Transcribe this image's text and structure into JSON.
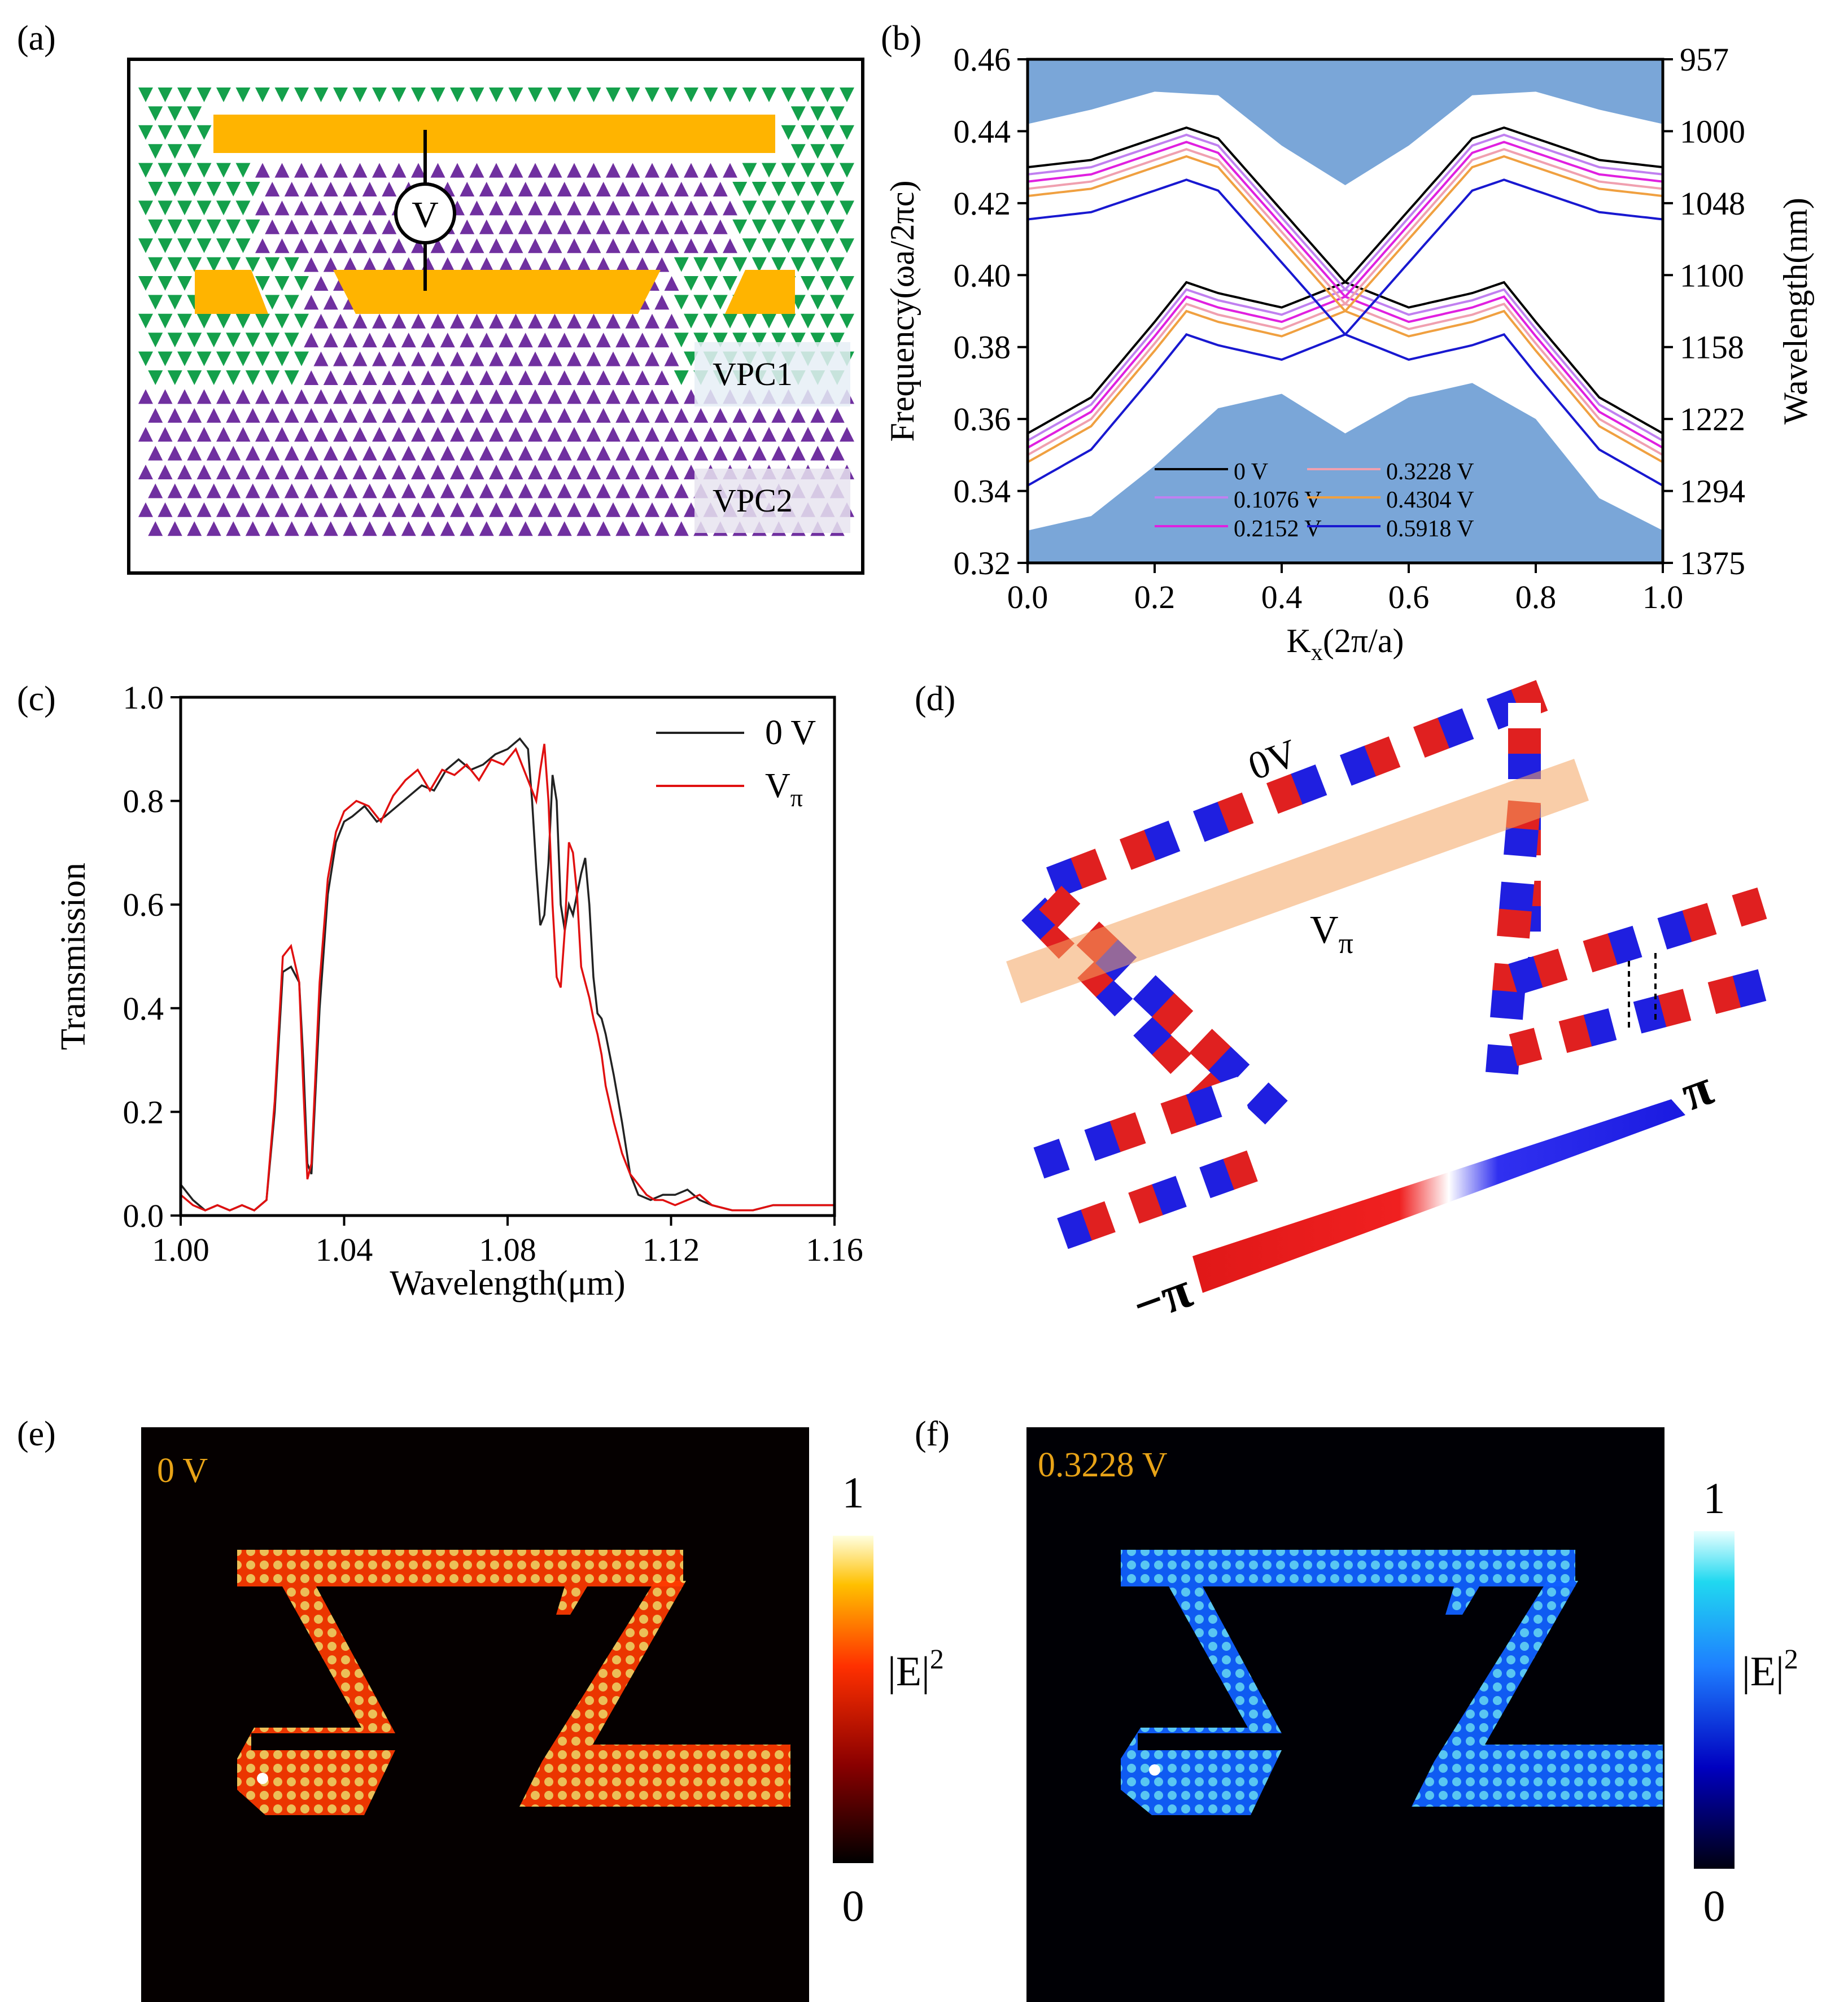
{
  "panels": {
    "a": {
      "label": "(a)",
      "voltage_symbol": "V",
      "region_labels": [
        "VPC1",
        "VPC2"
      ],
      "colors": {
        "gold": "#ffb400",
        "green": "#14a04b",
        "purple": "#7030a0"
      }
    },
    "b": {
      "label": "(b)"
    },
    "c": {
      "label": "(c)"
    },
    "d": {
      "label": "(d)",
      "label_0v": "0V",
      "label_vpi_main": "V",
      "label_vpi_sub": "π",
      "scale_min": "−π",
      "scale_max": "π",
      "colors": {
        "red": "#e02020",
        "blue": "#1f1fe0",
        "band": "#f4a460"
      }
    },
    "e": {
      "label": "(e)",
      "tag": "0 V",
      "colorbar_max": "1",
      "colorbar_min": "0",
      "colorbar_label": "|E|",
      "colorbar_exp": "2",
      "colors": {
        "tag": "#e8a317",
        "hot": "#ff4500"
      }
    },
    "f": {
      "label": "(f)",
      "tag": "0.3228 V",
      "colorbar_max": "1",
      "colorbar_min": "0",
      "colorbar_label": "|E|",
      "colorbar_exp": "2",
      "colors": {
        "tag": "#e8a317",
        "cool": "#1e90ff"
      }
    }
  },
  "chart_data": [
    {
      "panel": "b",
      "type": "line",
      "xlabel": "K",
      "xlabel_sub": "x",
      "xlabel_unit": "(2π/a)",
      "ylabel": "Frequency(ωa/2πc)",
      "ylabel_right": "Wavelength(nm)",
      "xlim": [
        0.0,
        1.0
      ],
      "ylim": [
        0.32,
        0.46
      ],
      "x_ticks": [
        "0.0",
        "0.2",
        "0.4",
        "0.6",
        "0.8",
        "1.0"
      ],
      "y_ticks": [
        "0.32",
        "0.34",
        "0.36",
        "0.38",
        "0.40",
        "0.42",
        "0.44",
        "0.46"
      ],
      "right_ticks": [
        {
          "f": 0.46,
          "label": "957"
        },
        {
          "f": 0.44,
          "label": "1000"
        },
        {
          "f": 0.42,
          "label": "1048"
        },
        {
          "f": 0.4,
          "label": "1100"
        },
        {
          "f": 0.38,
          "label": "1158"
        },
        {
          "f": 0.36,
          "label": "1222"
        },
        {
          "f": 0.34,
          "label": "1294"
        },
        {
          "f": 0.32,
          "label": "1375"
        }
      ],
      "bulk_color": "#7aa6d8",
      "upper_bulk_edge": {
        "x": [
          0.0,
          0.1,
          0.2,
          0.3,
          0.4,
          0.5,
          0.6,
          0.7,
          0.8,
          0.9,
          1.0
        ],
        "y": [
          0.442,
          0.446,
          0.451,
          0.45,
          0.436,
          0.425,
          0.436,
          0.45,
          0.451,
          0.446,
          0.442
        ]
      },
      "lower_bulk_edge": {
        "x": [
          0.0,
          0.1,
          0.2,
          0.3,
          0.4,
          0.5,
          0.6,
          0.7,
          0.8,
          0.9,
          1.0
        ],
        "y": [
          0.329,
          0.333,
          0.347,
          0.363,
          0.367,
          0.356,
          0.366,
          0.37,
          0.36,
          0.338,
          0.329
        ]
      },
      "series": [
        {
          "name": "0 V",
          "color": "#000000",
          "offset": 0.0
        },
        {
          "name": "0.1076 V",
          "color": "#c080f0",
          "offset": -0.002
        },
        {
          "name": "0.2152 V",
          "color": "#e020e0",
          "offset": -0.004
        },
        {
          "name": "0.3228 V",
          "color": "#f0a0b0",
          "offset": -0.006
        },
        {
          "name": "0.4304 V",
          "color": "#f0a040",
          "offset": -0.008
        },
        {
          "name": "0.5918 V",
          "color": "#1818d0",
          "offset": -0.0145
        }
      ],
      "band_a": {
        "x": [
          0.0,
          0.1,
          0.2,
          0.25,
          0.3,
          0.4,
          0.5,
          0.6,
          0.7,
          0.75,
          0.8,
          0.9,
          1.0
        ],
        "y": [
          0.43,
          0.432,
          0.438,
          0.441,
          0.438,
          0.418,
          0.398,
          0.391,
          0.395,
          0.398,
          0.387,
          0.366,
          0.356
        ]
      },
      "band_b": {
        "x": [
          0.0,
          0.1,
          0.2,
          0.25,
          0.3,
          0.4,
          0.5,
          0.6,
          0.7,
          0.75,
          0.8,
          0.9,
          1.0
        ],
        "y": [
          0.356,
          0.366,
          0.387,
          0.398,
          0.395,
          0.391,
          0.398,
          0.418,
          0.438,
          0.441,
          0.438,
          0.432,
          0.43
        ]
      }
    },
    {
      "panel": "c",
      "type": "line",
      "xlabel": "Wavelength(μm)",
      "ylabel": "Transmission",
      "xlim": [
        1.0,
        1.16
      ],
      "ylim": [
        0.0,
        1.0
      ],
      "x_ticks": [
        "1.00",
        "1.04",
        "1.08",
        "1.12",
        "1.16"
      ],
      "y_ticks": [
        "0.0",
        "0.2",
        "0.4",
        "0.6",
        "0.8",
        "1.0"
      ],
      "legend": [
        {
          "name": "0 V"
        },
        {
          "name": "V",
          "sub": "π"
        }
      ],
      "series": [
        {
          "name": "0 V",
          "color": "#222222",
          "x": [
            1.0,
            1.003,
            1.006,
            1.009,
            1.012,
            1.015,
            1.018,
            1.021,
            1.023,
            1.025,
            1.027,
            1.029,
            1.03,
            1.031,
            1.032,
            1.034,
            1.036,
            1.038,
            1.04,
            1.042,
            1.045,
            1.048,
            1.05,
            1.053,
            1.056,
            1.059,
            1.062,
            1.065,
            1.068,
            1.071,
            1.074,
            1.077,
            1.08,
            1.083,
            1.085,
            1.086,
            1.087,
            1.088,
            1.089,
            1.09,
            1.091,
            1.092,
            1.093,
            1.094,
            1.095,
            1.096,
            1.097,
            1.098,
            1.099,
            1.1,
            1.101,
            1.102,
            1.103,
            1.104,
            1.106,
            1.108,
            1.11,
            1.112,
            1.115,
            1.118,
            1.121,
            1.124,
            1.127,
            1.13,
            1.135,
            1.14,
            1.145,
            1.15,
            1.155,
            1.16
          ],
          "y": [
            0.06,
            0.03,
            0.01,
            0.02,
            0.01,
            0.02,
            0.01,
            0.03,
            0.2,
            0.47,
            0.48,
            0.45,
            0.3,
            0.1,
            0.08,
            0.4,
            0.62,
            0.72,
            0.76,
            0.77,
            0.79,
            0.76,
            0.77,
            0.79,
            0.81,
            0.83,
            0.82,
            0.86,
            0.88,
            0.86,
            0.87,
            0.89,
            0.9,
            0.92,
            0.9,
            0.8,
            0.67,
            0.56,
            0.58,
            0.68,
            0.85,
            0.8,
            0.6,
            0.55,
            0.6,
            0.58,
            0.62,
            0.66,
            0.69,
            0.6,
            0.46,
            0.39,
            0.38,
            0.35,
            0.27,
            0.18,
            0.08,
            0.04,
            0.03,
            0.04,
            0.04,
            0.05,
            0.03,
            0.02,
            0.01,
            0.01,
            0.02,
            0.02,
            0.02,
            0.02
          ]
        },
        {
          "name": "Vπ",
          "color": "#e01010",
          "x": [
            1.0,
            1.003,
            1.006,
            1.009,
            1.012,
            1.015,
            1.018,
            1.021,
            1.023,
            1.025,
            1.027,
            1.029,
            1.03,
            1.031,
            1.032,
            1.034,
            1.036,
            1.038,
            1.04,
            1.043,
            1.046,
            1.049,
            1.052,
            1.055,
            1.058,
            1.061,
            1.064,
            1.067,
            1.07,
            1.073,
            1.076,
            1.079,
            1.082,
            1.085,
            1.087,
            1.088,
            1.089,
            1.09,
            1.091,
            1.092,
            1.093,
            1.094,
            1.095,
            1.096,
            1.097,
            1.098,
            1.099,
            1.1,
            1.101,
            1.102,
            1.103,
            1.104,
            1.106,
            1.108,
            1.11,
            1.112,
            1.114,
            1.116,
            1.118,
            1.121,
            1.124,
            1.127,
            1.13,
            1.135,
            1.14,
            1.145,
            1.15,
            1.155,
            1.16
          ],
          "y": [
            0.04,
            0.02,
            0.01,
            0.02,
            0.01,
            0.02,
            0.01,
            0.03,
            0.22,
            0.5,
            0.52,
            0.45,
            0.25,
            0.07,
            0.1,
            0.45,
            0.65,
            0.74,
            0.78,
            0.8,
            0.79,
            0.76,
            0.81,
            0.84,
            0.86,
            0.82,
            0.86,
            0.85,
            0.87,
            0.84,
            0.88,
            0.87,
            0.9,
            0.84,
            0.8,
            0.86,
            0.91,
            0.8,
            0.6,
            0.46,
            0.44,
            0.55,
            0.72,
            0.7,
            0.62,
            0.48,
            0.45,
            0.42,
            0.38,
            0.35,
            0.31,
            0.25,
            0.18,
            0.12,
            0.08,
            0.06,
            0.04,
            0.03,
            0.03,
            0.02,
            0.03,
            0.04,
            0.02,
            0.01,
            0.01,
            0.02,
            0.02,
            0.02,
            0.02
          ]
        }
      ]
    }
  ]
}
